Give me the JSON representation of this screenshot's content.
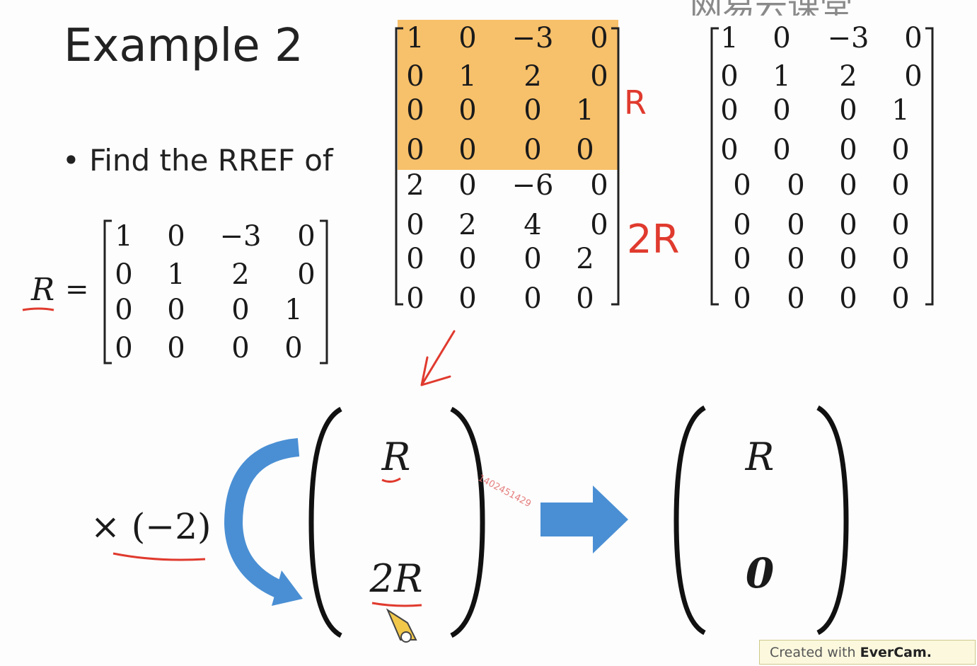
{
  "slide": {
    "title": "Example 2",
    "bullet": "• Find the RREF of",
    "logo_text": "网易云课堂",
    "watermark": "1402451429",
    "footer_prefix": "Created with ",
    "footer_brand": "EverCam."
  },
  "definition": {
    "label": "R",
    "equals": "=",
    "rows": [
      [
        "1",
        "0",
        "−3",
        "0"
      ],
      [
        "0",
        "1",
        "2",
        "0"
      ],
      [
        "0",
        "0",
        "0",
        "1"
      ],
      [
        "0",
        "0",
        "0",
        "0"
      ]
    ]
  },
  "stacked_matrix": {
    "rows": [
      [
        "1",
        "0",
        "−3",
        "0"
      ],
      [
        "0",
        "1",
        "2",
        "0"
      ],
      [
        "0",
        "0",
        "0",
        "1"
      ],
      [
        "0",
        "0",
        "0",
        "0"
      ],
      [
        "2",
        "0",
        "−6",
        "0"
      ],
      [
        "0",
        "2",
        "4",
        "0"
      ],
      [
        "0",
        "0",
        "0",
        "2"
      ],
      [
        "0",
        "0",
        "0",
        "0"
      ]
    ],
    "annotation_top": "R",
    "annotation_bottom": "2R",
    "highlight_color": "#f7c06a"
  },
  "result_matrix": {
    "rows": [
      [
        "1",
        "0",
        "−3",
        "0"
      ],
      [
        "0",
        "1",
        "2",
        "0"
      ],
      [
        "0",
        "0",
        "0",
        "1"
      ],
      [
        "0",
        "0",
        "0",
        "0"
      ],
      [
        "0",
        "0",
        "0",
        "0"
      ],
      [
        "0",
        "0",
        "0",
        "0"
      ],
      [
        "0",
        "0",
        "0",
        "0"
      ],
      [
        "0",
        "0",
        "0",
        "0"
      ]
    ]
  },
  "block_left": {
    "top": "R",
    "bottom": "2R",
    "multiplier": "× (−2)"
  },
  "block_right": {
    "top": "R",
    "bottom": "0"
  },
  "colors": {
    "annotation": "#e03a2e",
    "arrow": "#4a8fd4",
    "highlight": "#f7c06a"
  }
}
